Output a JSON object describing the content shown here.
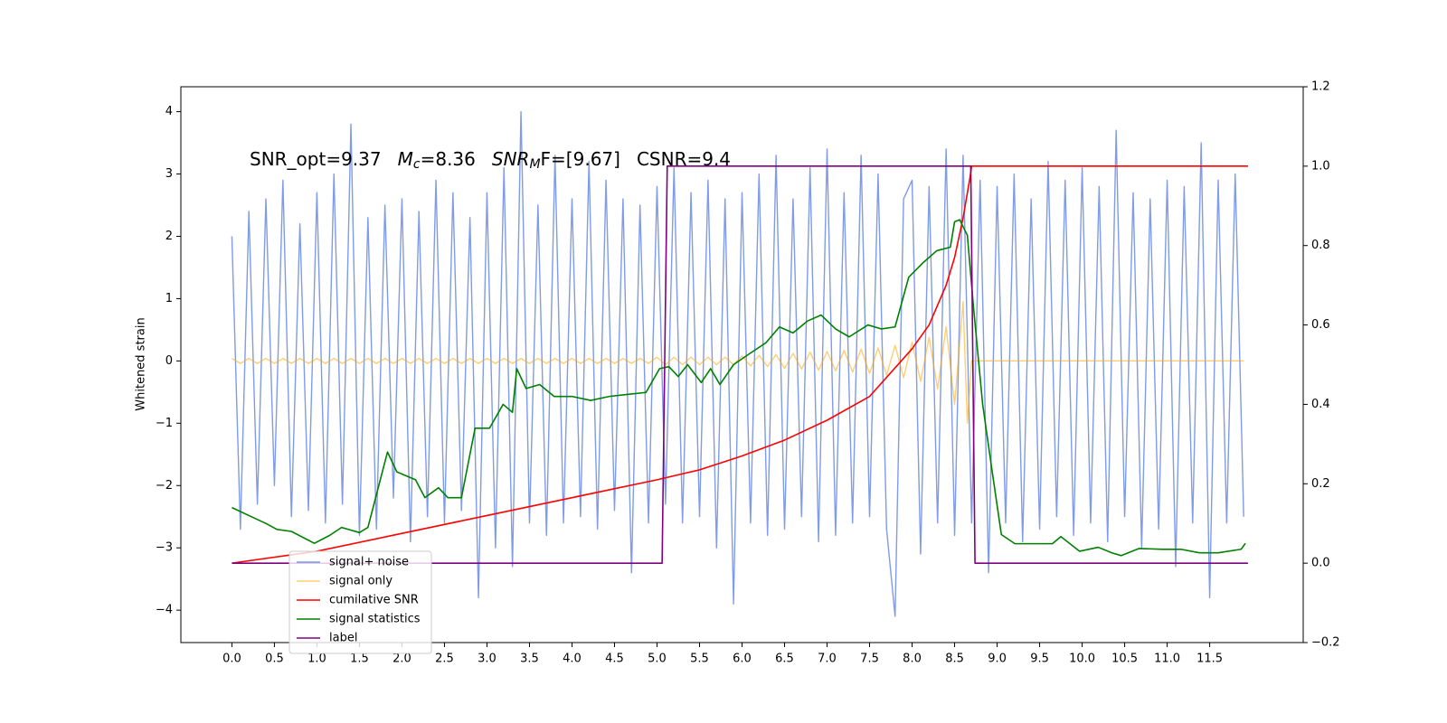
{
  "chart_data": {
    "type": "line",
    "ylabel": "Whitened strain",
    "annotation": [
      {
        "text": "SNR_opt=9.37"
      },
      {
        "text": "M",
        "italic": true
      },
      {
        "text": "c",
        "italic": true,
        "sub": true
      },
      {
        "text": "=8.36"
      },
      {
        "text": "SNR",
        "italic": true
      },
      {
        "text": "M",
        "italic": true,
        "sub": true
      },
      {
        "text": "F=[9.67]",
        "italic_first": true
      },
      {
        "text": "CSNR=9.4"
      }
    ],
    "xlim": [
      -0.6,
      12.6
    ],
    "ylim": [
      -4.52,
      4.4
    ],
    "y2lim": [
      -0.2,
      1.2
    ],
    "xticks": [
      {
        "value": 0,
        "label": "0.0"
      },
      {
        "value": 0.5,
        "label": "0.5"
      },
      {
        "value": 1,
        "label": "1.0"
      },
      {
        "value": 1.5,
        "label": "1.5"
      },
      {
        "value": 2,
        "label": "2.0"
      },
      {
        "value": 2.5,
        "label": "2.5"
      },
      {
        "value": 3,
        "label": "3.0"
      },
      {
        "value": 3.5,
        "label": "3.5"
      },
      {
        "value": 4,
        "label": "4.0"
      },
      {
        "value": 4.5,
        "label": "4.5"
      },
      {
        "value": 5,
        "label": "5.0"
      },
      {
        "value": 5.5,
        "label": "5.5"
      },
      {
        "value": 6,
        "label": "6.0"
      },
      {
        "value": 6.5,
        "label": "6.5"
      },
      {
        "value": 7,
        "label": "7.0"
      },
      {
        "value": 7.5,
        "label": "7.5"
      },
      {
        "value": 8,
        "label": "8.0"
      },
      {
        "value": 8.5,
        "label": "8.5"
      },
      {
        "value": 9,
        "label": "9.0"
      },
      {
        "value": 9.5,
        "label": "9.5"
      },
      {
        "value": 10,
        "label": "10.0"
      },
      {
        "value": 10.5,
        "label": "10.5"
      },
      {
        "value": 11,
        "label": "11.0"
      },
      {
        "value": 11.5,
        "label": "11.5"
      }
    ],
    "yticks": [
      {
        "value": -4,
        "label": "−4"
      },
      {
        "value": -3,
        "label": "−3"
      },
      {
        "value": -2,
        "label": "−2"
      },
      {
        "value": -1,
        "label": "−1"
      },
      0,
      1,
      2,
      3,
      4
    ],
    "y2ticks": [
      {
        "value": -0.2,
        "label": "−0.2"
      },
      {
        "value": 0,
        "label": "0.0"
      },
      {
        "value": 0.2,
        "label": "0.2"
      },
      {
        "value": 0.4,
        "label": "0.4"
      },
      {
        "value": 0.6,
        "label": "0.6"
      },
      {
        "value": 0.8,
        "label": "0.8"
      },
      {
        "value": 1,
        "label": "1.0"
      },
      {
        "value": 1.2,
        "label": "1.2"
      }
    ],
    "legend_loc": "lower left",
    "series": [
      {
        "name": "signal+ noise",
        "color": "#7896e8",
        "axis": "y",
        "x": [
          0,
          0.1,
          0.2,
          0.3,
          0.4,
          0.5,
          0.6,
          0.7,
          0.8,
          0.9,
          1,
          1.1,
          1.2,
          1.3,
          1.4,
          1.5,
          1.6,
          1.7,
          1.8,
          1.9,
          2,
          2.1,
          2.2,
          2.3,
          2.4,
          2.5,
          2.6,
          2.7,
          2.8,
          2.9,
          3,
          3.1,
          3.2,
          3.3,
          3.4,
          3.5,
          3.6,
          3.7,
          3.8,
          3.9,
          4,
          4.1,
          4.2,
          4.3,
          4.4,
          4.5,
          4.6,
          4.7,
          4.8,
          4.9,
          5,
          5.1,
          5.2,
          5.3,
          5.4,
          5.5,
          5.6,
          5.7,
          5.8,
          5.9,
          6,
          6.1,
          6.2,
          6.3,
          6.4,
          6.5,
          6.6,
          6.7,
          6.8,
          6.9,
          7,
          7.1,
          7.2,
          7.3,
          7.4,
          7.5,
          7.6,
          7.7,
          7.8,
          7.9,
          8,
          8.1,
          8.2,
          8.3,
          8.4,
          8.5,
          8.6,
          8.7,
          8.8,
          8.9,
          9,
          9.1,
          9.2,
          9.3,
          9.4,
          9.5,
          9.6,
          9.7,
          9.8,
          9.9,
          10,
          10.1,
          10.2,
          10.3,
          10.4,
          10.5,
          10.6,
          10.7,
          10.8,
          10.9,
          11,
          11.1,
          11.2,
          11.3,
          11.4,
          11.5,
          11.6,
          11.7,
          11.8,
          11.9
        ],
        "values": [
          2.0,
          -2.7,
          2.4,
          -2.3,
          2.6,
          -2.0,
          2.9,
          -2.5,
          2.2,
          -2.4,
          2.7,
          -2.6,
          3.0,
          -2.3,
          3.8,
          -2.8,
          2.3,
          -2.7,
          2.5,
          -2.2,
          2.6,
          -2.9,
          2.4,
          -2.5,
          2.9,
          -2.6,
          2.7,
          -2.4,
          2.3,
          -3.8,
          2.7,
          -3.0,
          3.1,
          -3.3,
          4.0,
          -2.6,
          2.5,
          -2.8,
          3.3,
          -2.6,
          2.6,
          -2.5,
          3.2,
          -2.7,
          2.9,
          -2.4,
          2.6,
          -3.4,
          2.5,
          -2.6,
          2.8,
          -2.3,
          3.1,
          -2.6,
          2.7,
          -2.5,
          2.9,
          -3.0,
          2.6,
          -3.9,
          2.7,
          -2.6,
          3.0,
          -2.8,
          3.3,
          -2.7,
          2.6,
          -2.5,
          3.1,
          -2.9,
          3.4,
          -2.8,
          2.7,
          -2.6,
          3.3,
          -2.5,
          3.0,
          -2.7,
          -4.1,
          2.6,
          2.9,
          -3.1,
          2.8,
          -2.6,
          3.4,
          -2.8,
          3.3,
          -2.6,
          2.9,
          -3.4,
          2.8,
          -2.6,
          3.0,
          -2.9,
          2.6,
          -2.7,
          3.2,
          -2.5,
          2.9,
          -2.8,
          3.1,
          -2.6,
          2.8,
          -2.9,
          3.7,
          -2.5,
          2.7,
          -3.0,
          2.6,
          -2.7,
          2.9,
          -3.3,
          2.8,
          -2.6,
          3.5,
          -3.8,
          2.9,
          -2.6,
          3.0,
          -2.5
        ]
      },
      {
        "name": "signal only",
        "color": "#ffa500",
        "axis": "y",
        "x": [
          0,
          0.1,
          0.2,
          0.3,
          0.4,
          0.5,
          0.6,
          0.7,
          0.8,
          0.9,
          1,
          1.1,
          1.2,
          1.3,
          1.4,
          1.5,
          1.6,
          1.7,
          1.8,
          1.9,
          2,
          2.1,
          2.2,
          2.3,
          2.4,
          2.5,
          2.6,
          2.7,
          2.8,
          2.9,
          3,
          3.1,
          3.2,
          3.3,
          3.4,
          3.5,
          3.6,
          3.7,
          3.8,
          3.9,
          4,
          4.1,
          4.2,
          4.3,
          4.4,
          4.5,
          4.6,
          4.7,
          4.8,
          4.9,
          5,
          5.1,
          5.2,
          5.3,
          5.4,
          5.5,
          5.6,
          5.7,
          5.8,
          5.9,
          6,
          6.1,
          6.2,
          6.3,
          6.4,
          6.5,
          6.6,
          6.7,
          6.8,
          6.9,
          7,
          7.1,
          7.2,
          7.3,
          7.4,
          7.5,
          7.6,
          7.7,
          7.8,
          7.9,
          8,
          8.1,
          8.2,
          8.3,
          8.4,
          8.5,
          8.6,
          8.65,
          8.7,
          8.8,
          8.9,
          9,
          9.5,
          10,
          10.5,
          11,
          11.5,
          11.9
        ],
        "values": [
          0.04,
          -0.04,
          0.04,
          -0.04,
          0.04,
          -0.04,
          0.04,
          -0.04,
          0.04,
          -0.04,
          0.04,
          -0.04,
          0.04,
          -0.04,
          0.04,
          -0.04,
          0.04,
          -0.04,
          0.04,
          -0.04,
          0.04,
          -0.04,
          0.04,
          -0.04,
          0.04,
          -0.04,
          0.04,
          -0.04,
          0.04,
          -0.04,
          0.04,
          -0.04,
          0.04,
          -0.04,
          0.04,
          -0.04,
          0.04,
          -0.04,
          0.04,
          -0.04,
          0.04,
          -0.04,
          0.04,
          -0.04,
          0.04,
          -0.04,
          0.04,
          -0.04,
          0.04,
          -0.04,
          0.06,
          -0.06,
          0.06,
          -0.06,
          0.06,
          -0.06,
          0.06,
          -0.06,
          0.06,
          -0.06,
          0.08,
          -0.08,
          0.09,
          -0.09,
          0.1,
          -0.12,
          0.12,
          -0.13,
          0.14,
          -0.15,
          0.15,
          -0.16,
          0.17,
          -0.18,
          0.19,
          -0.2,
          0.21,
          -0.23,
          0.25,
          -0.27,
          0.3,
          -0.33,
          0.38,
          -0.45,
          0.55,
          -0.7,
          0.95,
          -1.0,
          0,
          0,
          0,
          0,
          0,
          0,
          0,
          0,
          0,
          0
        ]
      },
      {
        "name": "cumilative SNR",
        "color": "#ff0000",
        "axis": "y2",
        "x": [
          0,
          1,
          2,
          3,
          4,
          5,
          5.5,
          6,
          6.5,
          7,
          7.5,
          8,
          8.2,
          8.4,
          8.5,
          8.6,
          8.68,
          8.7,
          11.95
        ],
        "values": [
          0,
          0.03,
          0.075,
          0.12,
          0.165,
          0.21,
          0.235,
          0.27,
          0.31,
          0.36,
          0.42,
          0.54,
          0.6,
          0.7,
          0.77,
          0.87,
          0.97,
          1.0,
          1.0
        ]
      },
      {
        "name": "signal statistics",
        "color": "#008000",
        "axis": "y2",
        "x": [
          0,
          0.2,
          0.4,
          0.53,
          0.7,
          0.97,
          1.15,
          1.29,
          1.5,
          1.6,
          1.83,
          1.94,
          2.16,
          2.27,
          2.43,
          2.54,
          2.7,
          2.86,
          3.03,
          3.19,
          3.3,
          3.35,
          3.46,
          3.62,
          3.79,
          4.0,
          4.22,
          4.44,
          4.65,
          4.87,
          5.03,
          5.14,
          5.25,
          5.36,
          5.52,
          5.63,
          5.74,
          5.9,
          6.07,
          6.28,
          6.44,
          6.6,
          6.77,
          6.93,
          7.1,
          7.26,
          7.48,
          7.64,
          7.8,
          7.96,
          8.13,
          8.29,
          8.45,
          8.5,
          8.56,
          8.65,
          8.72,
          8.83,
          8.94,
          9.05,
          9.21,
          9.43,
          9.65,
          9.75,
          9.97,
          10.19,
          10.35,
          10.46,
          10.67,
          10.95,
          11.16,
          11.38,
          11.6,
          11.87,
          11.92
        ],
        "values": [
          0.14,
          0.12,
          0.1,
          0.085,
          0.08,
          0.05,
          0.07,
          0.09,
          0.077,
          0.09,
          0.28,
          0.23,
          0.21,
          0.165,
          0.19,
          0.165,
          0.165,
          0.34,
          0.34,
          0.4,
          0.38,
          0.49,
          0.44,
          0.45,
          0.42,
          0.42,
          0.41,
          0.42,
          0.425,
          0.43,
          0.49,
          0.495,
          0.47,
          0.5,
          0.455,
          0.49,
          0.45,
          0.5,
          0.525,
          0.555,
          0.595,
          0.58,
          0.61,
          0.625,
          0.59,
          0.57,
          0.6,
          0.59,
          0.595,
          0.72,
          0.757,
          0.787,
          0.796,
          0.86,
          0.865,
          0.826,
          0.65,
          0.4,
          0.234,
          0.072,
          0.049,
          0.049,
          0.049,
          0.067,
          0.03,
          0.04,
          0.026,
          0.019,
          0.037,
          0.035,
          0.035,
          0.026,
          0.026,
          0.035,
          0.05
        ]
      },
      {
        "name": "label",
        "color": "#800080",
        "axis": "y2",
        "x": [
          0,
          5.06,
          5.12,
          8.69,
          8.74,
          11.95
        ],
        "values": [
          0,
          0,
          1,
          1,
          0,
          0
        ]
      }
    ]
  }
}
